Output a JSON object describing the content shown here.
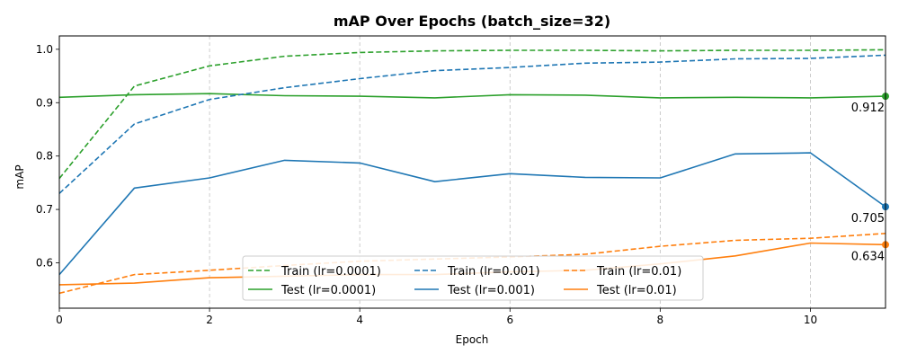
{
  "chart_data": {
    "type": "line",
    "title": "mAP Over Epochs (batch_size=32)",
    "xlabel": "Epoch",
    "ylabel": "mAP",
    "xlim": [
      0,
      11
    ],
    "ylim": [
      0.515,
      1.025
    ],
    "xticks": [
      0,
      2,
      4,
      6,
      8,
      10
    ],
    "yticks": [
      0.6,
      0.7,
      0.8,
      0.9,
      1.0
    ],
    "xtick_labels": [
      "0",
      "2",
      "4",
      "6",
      "8",
      "10"
    ],
    "ytick_labels": [
      "0.6",
      "0.7",
      "0.8",
      "0.9",
      "1.0"
    ],
    "grid": "vertical at major x ticks, dashed",
    "legend_location": "lower center",
    "x": [
      0,
      1,
      2,
      3,
      4,
      5,
      6,
      7,
      8,
      9,
      10,
      11
    ],
    "series": [
      {
        "name": "Train (lr=0.0001)",
        "color": "#2ca02c",
        "dashed": true,
        "values": [
          0.758,
          0.931,
          0.969,
          0.987,
          0.994,
          0.997,
          0.998,
          0.998,
          0.997,
          0.998,
          0.998,
          0.999
        ]
      },
      {
        "name": "Test (lr=0.0001)",
        "color": "#2ca02c",
        "dashed": false,
        "values": [
          0.91,
          0.915,
          0.917,
          0.913,
          0.912,
          0.909,
          0.915,
          0.914,
          0.909,
          0.91,
          0.909,
          0.912
        ]
      },
      {
        "name": "Train (lr=0.001)",
        "color": "#1f77b4",
        "dashed": true,
        "values": [
          0.73,
          0.86,
          0.906,
          0.928,
          0.945,
          0.96,
          0.966,
          0.974,
          0.976,
          0.982,
          0.983,
          0.989
        ]
      },
      {
        "name": "Test (lr=0.001)",
        "color": "#1f77b4",
        "dashed": false,
        "values": [
          0.578,
          0.74,
          0.759,
          0.792,
          0.787,
          0.752,
          0.767,
          0.76,
          0.759,
          0.804,
          0.806,
          0.705
        ]
      },
      {
        "name": "Train (lr=0.01)",
        "color": "#ff7f0e",
        "dashed": true,
        "values": [
          0.543,
          0.578,
          0.586,
          0.595,
          0.603,
          0.607,
          0.611,
          0.616,
          0.631,
          0.642,
          0.646,
          0.655
        ]
      },
      {
        "name": "Test (lr=0.01)",
        "color": "#ff7f0e",
        "dashed": false,
        "values": [
          0.559,
          0.562,
          0.572,
          0.575,
          0.578,
          0.578,
          0.583,
          0.586,
          0.598,
          0.613,
          0.637,
          0.634
        ]
      }
    ],
    "end_annotations": [
      {
        "series": "Test (lr=0.0001)",
        "label": "0.912",
        "value": 0.912,
        "color": "#2ca02c"
      },
      {
        "series": "Test (lr=0.001)",
        "label": "0.705",
        "value": 0.705,
        "color": "#1f77b4"
      },
      {
        "series": "Test (lr=0.01)",
        "label": "0.634",
        "value": 0.634,
        "color": "#ff7f0e"
      }
    ],
    "legend_order": [
      "Train (lr=0.0001)",
      "Test (lr=0.0001)",
      "Train (lr=0.001)",
      "Test (lr=0.001)",
      "Train (lr=0.01)",
      "Test (lr=0.01)"
    ]
  }
}
